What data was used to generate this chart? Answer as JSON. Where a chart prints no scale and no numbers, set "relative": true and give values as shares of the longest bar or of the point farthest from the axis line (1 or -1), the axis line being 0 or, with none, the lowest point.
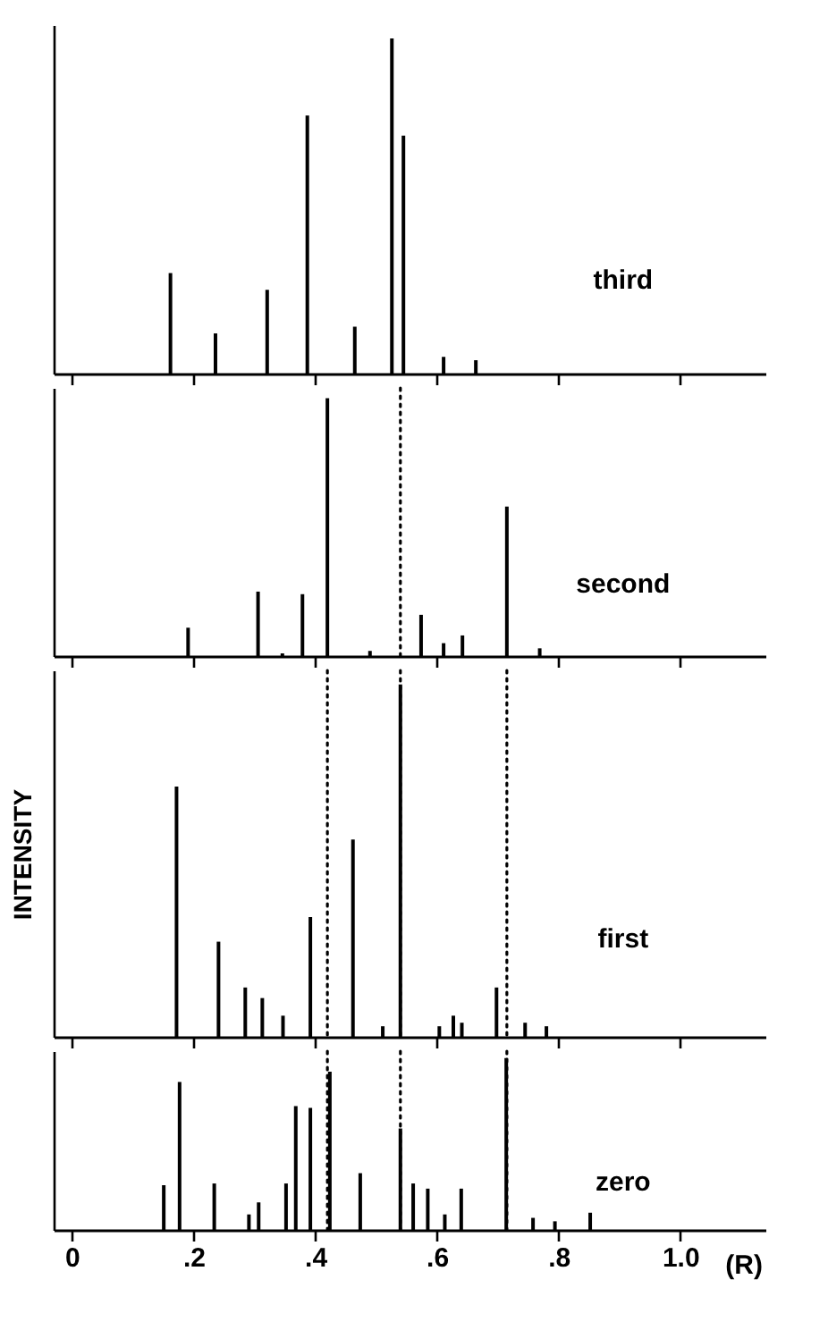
{
  "chart_data": [
    {
      "type": "bar",
      "relative": true,
      "xlim": [
        -0.03,
        1.14
      ],
      "xticks": [
        {
          "value": 0,
          "label": null
        },
        {
          "value": 0.2,
          "label": null
        },
        {
          "value": 0.4,
          "label": null
        },
        {
          "value": 0.6,
          "label": null
        },
        {
          "value": 0.8,
          "label": null
        },
        {
          "value": 1,
          "label": null
        }
      ],
      "tick_labels": false,
      "x": [
        0.162,
        0.236,
        0.321,
        0.387,
        0.465,
        0.526,
        0.545,
        0.611,
        0.664
      ],
      "series": [
        {
          "name": "third",
          "color": "#000000",
          "values": [
            0.3,
            0.12,
            0.25,
            0.77,
            0.14,
            1,
            0.71,
            0.05,
            0.04
          ]
        }
      ]
    },
    {
      "type": "bar",
      "relative": true,
      "xlim": [
        -0.03,
        1.14
      ],
      "xticks": [
        {
          "value": 0,
          "label": null
        },
        {
          "value": 0.2,
          "label": null
        },
        {
          "value": 0.4,
          "label": null
        },
        {
          "value": 0.6,
          "label": null
        },
        {
          "value": 0.8,
          "label": null
        },
        {
          "value": 1,
          "label": null
        }
      ],
      "tick_labels": false,
      "x": [
        0.191,
        0.306,
        0.346,
        0.379,
        0.42,
        0.49,
        0.574,
        0.611,
        0.642,
        0.715,
        0.769
      ],
      "series": [
        {
          "name": "second",
          "color": "#000000",
          "values": [
            0.11,
            0.25,
            0.01,
            0.24,
            1,
            0.02,
            0.16,
            0.05,
            0.08,
            0.58,
            0.03
          ]
        }
      ],
      "ref_lines": [
        {
          "axis": "x",
          "value": 0.54,
          "line_style": "dotted"
        }
      ]
    },
    {
      "type": "bar",
      "relative": true,
      "ylabel": "INTENSITY",
      "xlim": [
        -0.03,
        1.14
      ],
      "xticks": [
        {
          "value": 0,
          "label": null
        },
        {
          "value": 0.2,
          "label": null
        },
        {
          "value": 0.4,
          "label": null
        },
        {
          "value": 0.6,
          "label": null
        },
        {
          "value": 0.8,
          "label": null
        },
        {
          "value": 1,
          "label": null
        }
      ],
      "tick_labels": false,
      "x": [
        0.172,
        0.241,
        0.285,
        0.313,
        0.347,
        0.392,
        0.462,
        0.511,
        0.54,
        0.604,
        0.627,
        0.641,
        0.698,
        0.745,
        0.78
      ],
      "series": [
        {
          "name": "first",
          "color": "#000000",
          "values": [
            0.71,
            0.27,
            0.14,
            0.11,
            0.06,
            0.34,
            0.56,
            0.03,
            1,
            0.03,
            0.06,
            0.04,
            0.14,
            0.04,
            0.03
          ]
        }
      ],
      "ref_lines": [
        {
          "axis": "x",
          "value": 0.42,
          "line_style": "dotted"
        },
        {
          "axis": "x",
          "value": 0.54,
          "line_style": "dotted"
        },
        {
          "axis": "x",
          "value": 0.715,
          "line_style": "dotted"
        }
      ]
    },
    {
      "type": "bar",
      "relative": true,
      "xlabel": "(R)",
      "xlim": [
        -0.03,
        1.14
      ],
      "xticks": [
        {
          "value": 0,
          "label": "0"
        },
        {
          "value": 0.2,
          "label": ".2"
        },
        {
          "value": 0.4,
          "label": ".4"
        },
        {
          "value": 0.6,
          "label": ".6"
        },
        {
          "value": 0.8,
          "label": ".8"
        },
        {
          "value": 1,
          "label": "1.0"
        }
      ],
      "tick_labels": "x",
      "x": [
        0.151,
        0.177,
        0.234,
        0.291,
        0.307,
        0.352,
        0.368,
        0.392,
        0.424,
        0.474,
        0.54,
        0.561,
        0.585,
        0.613,
        0.64,
        0.714,
        0.758,
        0.794,
        0.852
      ],
      "series": [
        {
          "name": "zero",
          "color": "#000000",
          "values": [
            0.26,
            0.86,
            0.27,
            0.09,
            0.16,
            0.27,
            0.72,
            0.71,
            0.92,
            0.33,
            0.59,
            0.27,
            0.24,
            0.09,
            0.24,
            1,
            0.07,
            0.05,
            0.1
          ]
        }
      ],
      "ref_lines": [
        {
          "axis": "x",
          "value": 0.42,
          "line_style": "dotted"
        },
        {
          "axis": "x",
          "value": 0.54,
          "line_style": "dotted"
        },
        {
          "axis": "x",
          "value": 0.715,
          "line_style": "dotted"
        }
      ]
    }
  ]
}
